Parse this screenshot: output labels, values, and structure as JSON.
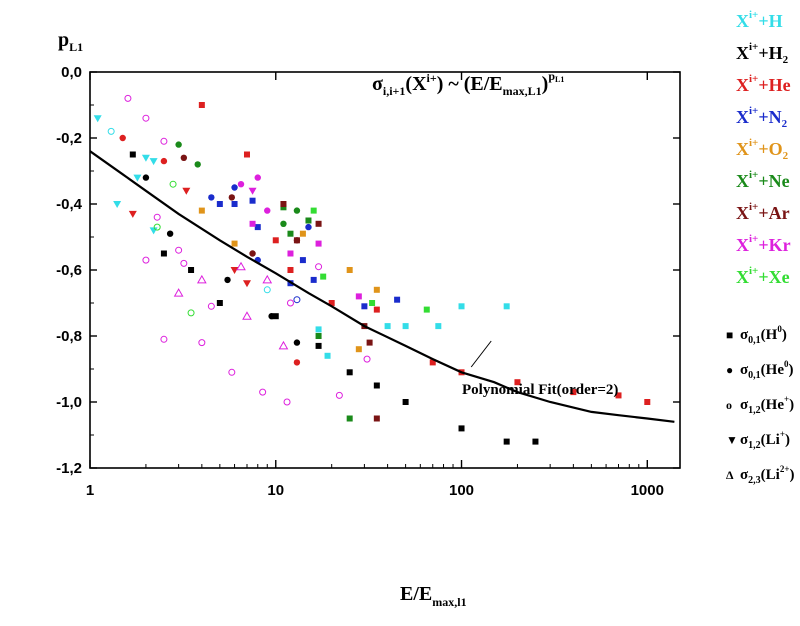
{
  "chart_data": {
    "type": "scatter",
    "x_scale": "log",
    "xlim": [
      1,
      1500
    ],
    "ylim": [
      -1.2,
      0.0
    ],
    "ylabel": {
      "main": "p",
      "sub": "L1"
    },
    "xlabel": {
      "main": "E/E",
      "sub": "max,l1"
    },
    "formula": {
      "sigma": "σ",
      "sub": "i,i+1",
      "arg": "(X",
      "argsup": "i+",
      "mid": ") ~ (E/E",
      "sub2": "max,L1",
      "close": ")",
      "exp": "p",
      "expsub": "L1"
    },
    "x_ticks": [
      {
        "v": 1,
        "label": "1"
      },
      {
        "v": 10,
        "label": "10"
      },
      {
        "v": 100,
        "label": "100"
      },
      {
        "v": 1000,
        "label": "1000"
      }
    ],
    "y_ticks": [
      {
        "v": 0.0,
        "label": "0,0"
      },
      {
        "v": -0.2,
        "label": "-0,2"
      },
      {
        "v": -0.4,
        "label": "-0,4"
      },
      {
        "v": -0.6,
        "label": "-0,6"
      },
      {
        "v": -0.8,
        "label": "-0,8"
      },
      {
        "v": -1.0,
        "label": "-1,0"
      },
      {
        "v": -1.2,
        "label": "-1,2"
      }
    ],
    "fit": {
      "label": "Polynomial Fit(order=2)",
      "points": [
        [
          1,
          -0.24
        ],
        [
          1.5,
          -0.31
        ],
        [
          2,
          -0.36
        ],
        [
          3,
          -0.43
        ],
        [
          5,
          -0.51
        ],
        [
          7,
          -0.56
        ],
        [
          10,
          -0.61
        ],
        [
          15,
          -0.67
        ],
        [
          20,
          -0.71
        ],
        [
          30,
          -0.77
        ],
        [
          50,
          -0.83
        ],
        [
          70,
          -0.87
        ],
        [
          100,
          -0.91
        ],
        [
          150,
          -0.94
        ],
        [
          200,
          -0.97
        ],
        [
          300,
          -1.0
        ],
        [
          500,
          -1.03
        ],
        [
          700,
          -1.04
        ],
        [
          1000,
          -1.05
        ],
        [
          1400,
          -1.06
        ]
      ],
      "annotation_at": [
        110,
        -0.9
      ]
    },
    "series_legend": [
      {
        "prefix": "X",
        "sup": "i+",
        "plus": "+H",
        "sub": "",
        "color": "#33dde8"
      },
      {
        "prefix": "X",
        "sup": "i+",
        "plus": "+H",
        "sub": "2",
        "color": "#000000"
      },
      {
        "prefix": "X",
        "sup": "i+",
        "plus": "+He",
        "sub": "",
        "color": "#dd2020"
      },
      {
        "prefix": "X",
        "sup": "i+",
        "plus": "+N",
        "sub": "2",
        "color": "#1a2ccc"
      },
      {
        "prefix": "X",
        "sup": "i+",
        "plus": "+O",
        "sub": "2",
        "color": "#e0941a"
      },
      {
        "prefix": "X",
        "sup": "i+",
        "plus": "+Ne",
        "sub": "",
        "color": "#1a8a1a"
      },
      {
        "prefix": "X",
        "sup": "i+",
        "plus": "+Ar",
        "sub": "",
        "color": "#7a1414"
      },
      {
        "prefix": "X",
        "sup": "i+",
        "plus": "+Kr",
        "sub": "",
        "color": "#dd20dd"
      },
      {
        "prefix": "X",
        "sup": "i+",
        "plus": "+Xe",
        "sub": "",
        "color": "#33dd33"
      }
    ],
    "marker_legend": [
      {
        "sym": "■",
        "shape": "square",
        "label": "σ",
        "sub": "0,1",
        "arg": "(H",
        "argsup": "0",
        "close": ")"
      },
      {
        "sym": "●",
        "shape": "circle",
        "label": "σ",
        "sub": "0,1",
        "arg": "(He",
        "argsup": "0",
        "close": ")"
      },
      {
        "sym": "o",
        "shape": "open-circle",
        "label": "σ",
        "sub": "1,2",
        "arg": "(He",
        "argsup": "+",
        "close": ")"
      },
      {
        "sym": "▼",
        "shape": "down-triangle",
        "label": "σ",
        "sub": "1,2",
        "arg": "(Li",
        "argsup": "+",
        "close": ")"
      },
      {
        "sym": "Δ",
        "shape": "open-triangle",
        "label": "σ",
        "sub": "2,3",
        "arg": "(Li",
        "argsup": "2+",
        "close": ")"
      }
    ],
    "points": [
      {
        "x": 1.1,
        "y": -0.14,
        "c": 0,
        "m": "d"
      },
      {
        "x": 1.4,
        "y": -0.4,
        "c": 0,
        "m": "d"
      },
      {
        "x": 1.8,
        "y": -0.32,
        "c": 0,
        "m": "d"
      },
      {
        "x": 2.0,
        "y": -0.26,
        "c": 0,
        "m": "d"
      },
      {
        "x": 2.2,
        "y": -0.48,
        "c": 0,
        "m": "d"
      },
      {
        "x": 17,
        "y": -0.78,
        "c": 0,
        "m": "s"
      },
      {
        "x": 19,
        "y": -0.86,
        "c": 0,
        "m": "s"
      },
      {
        "x": 40,
        "y": -0.77,
        "c": 0,
        "m": "s"
      },
      {
        "x": 50,
        "y": -0.77,
        "c": 0,
        "m": "s"
      },
      {
        "x": 75,
        "y": -0.77,
        "c": 0,
        "m": "s"
      },
      {
        "x": 100,
        "y": -0.71,
        "c": 0,
        "m": "s"
      },
      {
        "x": 175,
        "y": -0.71,
        "c": 0,
        "m": "s"
      },
      {
        "x": 1.7,
        "y": -0.25,
        "c": 1,
        "m": "s"
      },
      {
        "x": 2.5,
        "y": -0.55,
        "c": 1,
        "m": "s"
      },
      {
        "x": 3.5,
        "y": -0.6,
        "c": 1,
        "m": "s"
      },
      {
        "x": 5,
        "y": -0.7,
        "c": 1,
        "m": "s"
      },
      {
        "x": 10,
        "y": -0.74,
        "c": 1,
        "m": "s"
      },
      {
        "x": 17,
        "y": -0.83,
        "c": 1,
        "m": "s"
      },
      {
        "x": 25,
        "y": -0.91,
        "c": 1,
        "m": "s"
      },
      {
        "x": 35,
        "y": -0.95,
        "c": 1,
        "m": "s"
      },
      {
        "x": 50,
        "y": -1.0,
        "c": 1,
        "m": "s"
      },
      {
        "x": 100,
        "y": -1.08,
        "c": 1,
        "m": "s"
      },
      {
        "x": 175,
        "y": -1.12,
        "c": 1,
        "m": "s"
      },
      {
        "x": 250,
        "y": -1.12,
        "c": 1,
        "m": "s"
      },
      {
        "x": 2.0,
        "y": -0.32,
        "c": 1,
        "m": "c"
      },
      {
        "x": 2.7,
        "y": -0.49,
        "c": 1,
        "m": "c"
      },
      {
        "x": 5.5,
        "y": -0.63,
        "c": 1,
        "m": "c"
      },
      {
        "x": 9.5,
        "y": -0.74,
        "c": 1,
        "m": "c"
      },
      {
        "x": 13,
        "y": -0.82,
        "c": 1,
        "m": "c"
      },
      {
        "x": 4,
        "y": -0.1,
        "c": 2,
        "m": "s"
      },
      {
        "x": 7,
        "y": -0.25,
        "c": 2,
        "m": "s"
      },
      {
        "x": 10,
        "y": -0.51,
        "c": 2,
        "m": "s"
      },
      {
        "x": 12,
        "y": -0.6,
        "c": 2,
        "m": "s"
      },
      {
        "x": 20,
        "y": -0.7,
        "c": 2,
        "m": "s"
      },
      {
        "x": 35,
        "y": -0.72,
        "c": 2,
        "m": "s"
      },
      {
        "x": 70,
        "y": -0.88,
        "c": 2,
        "m": "s"
      },
      {
        "x": 100,
        "y": -0.91,
        "c": 2,
        "m": "s"
      },
      {
        "x": 200,
        "y": -0.94,
        "c": 2,
        "m": "s"
      },
      {
        "x": 400,
        "y": -0.97,
        "c": 2,
        "m": "s"
      },
      {
        "x": 700,
        "y": -0.98,
        "c": 2,
        "m": "s"
      },
      {
        "x": 1000,
        "y": -1.0,
        "c": 2,
        "m": "s"
      },
      {
        "x": 1.5,
        "y": -0.2,
        "c": 2,
        "m": "c"
      },
      {
        "x": 2.5,
        "y": -0.27,
        "c": 2,
        "m": "c"
      },
      {
        "x": 13,
        "y": -0.88,
        "c": 2,
        "m": "c"
      },
      {
        "x": 1.7,
        "y": -0.43,
        "c": 2,
        "m": "t"
      },
      {
        "x": 3.3,
        "y": -0.36,
        "c": 2,
        "m": "t"
      },
      {
        "x": 6,
        "y": -0.6,
        "c": 2,
        "m": "t"
      },
      {
        "x": 7,
        "y": -0.64,
        "c": 2,
        "m": "t"
      },
      {
        "x": 5,
        "y": -0.4,
        "c": 3,
        "m": "s"
      },
      {
        "x": 6,
        "y": -0.4,
        "c": 3,
        "m": "s"
      },
      {
        "x": 7.5,
        "y": -0.39,
        "c": 3,
        "m": "s"
      },
      {
        "x": 8,
        "y": -0.47,
        "c": 3,
        "m": "s"
      },
      {
        "x": 12,
        "y": -0.64,
        "c": 3,
        "m": "s"
      },
      {
        "x": 14,
        "y": -0.57,
        "c": 3,
        "m": "s"
      },
      {
        "x": 16,
        "y": -0.63,
        "c": 3,
        "m": "s"
      },
      {
        "x": 30,
        "y": -0.71,
        "c": 3,
        "m": "s"
      },
      {
        "x": 45,
        "y": -0.69,
        "c": 3,
        "m": "s"
      },
      {
        "x": 4.5,
        "y": -0.38,
        "c": 3,
        "m": "c"
      },
      {
        "x": 6,
        "y": -0.35,
        "c": 3,
        "m": "c"
      },
      {
        "x": 8,
        "y": -0.57,
        "c": 3,
        "m": "c"
      },
      {
        "x": 15,
        "y": -0.47,
        "c": 3,
        "m": "c"
      },
      {
        "x": 4,
        "y": -0.42,
        "c": 4,
        "m": "s"
      },
      {
        "x": 6,
        "y": -0.52,
        "c": 4,
        "m": "s"
      },
      {
        "x": 14,
        "y": -0.49,
        "c": 4,
        "m": "s"
      },
      {
        "x": 25,
        "y": -0.6,
        "c": 4,
        "m": "s"
      },
      {
        "x": 28,
        "y": -0.84,
        "c": 4,
        "m": "s"
      },
      {
        "x": 35,
        "y": -0.66,
        "c": 4,
        "m": "s"
      },
      {
        "x": 3,
        "y": -0.22,
        "c": 5,
        "m": "c"
      },
      {
        "x": 3.8,
        "y": -0.28,
        "c": 5,
        "m": "c"
      },
      {
        "x": 11,
        "y": -0.46,
        "c": 5,
        "m": "c"
      },
      {
        "x": 13,
        "y": -0.42,
        "c": 5,
        "m": "c"
      },
      {
        "x": 11,
        "y": -0.41,
        "c": 5,
        "m": "s"
      },
      {
        "x": 15,
        "y": -0.45,
        "c": 5,
        "m": "s"
      },
      {
        "x": 17,
        "y": -0.8,
        "c": 5,
        "m": "s"
      },
      {
        "x": 25,
        "y": -1.05,
        "c": 5,
        "m": "s"
      },
      {
        "x": 12,
        "y": -0.49,
        "c": 5,
        "m": "s"
      },
      {
        "x": 3.2,
        "y": -0.26,
        "c": 6,
        "m": "c"
      },
      {
        "x": 5.8,
        "y": -0.38,
        "c": 6,
        "m": "c"
      },
      {
        "x": 13,
        "y": -0.51,
        "c": 6,
        "m": "c"
      },
      {
        "x": 7.5,
        "y": -0.55,
        "c": 6,
        "m": "c"
      },
      {
        "x": 11,
        "y": -0.4,
        "c": 6,
        "m": "s"
      },
      {
        "x": 13,
        "y": -0.51,
        "c": 6,
        "m": "s"
      },
      {
        "x": 17,
        "y": -0.46,
        "c": 6,
        "m": "s"
      },
      {
        "x": 30,
        "y": -0.77,
        "c": 6,
        "m": "s"
      },
      {
        "x": 35,
        "y": -1.05,
        "c": 6,
        "m": "s"
      },
      {
        "x": 32,
        "y": -0.82,
        "c": 6,
        "m": "s"
      },
      {
        "x": 6.5,
        "y": -0.34,
        "c": 7,
        "m": "c"
      },
      {
        "x": 8,
        "y": -0.32,
        "c": 7,
        "m": "c"
      },
      {
        "x": 9,
        "y": -0.42,
        "c": 7,
        "m": "c"
      },
      {
        "x": 7.5,
        "y": -0.46,
        "c": 7,
        "m": "s"
      },
      {
        "x": 12,
        "y": -0.55,
        "c": 7,
        "m": "s"
      },
      {
        "x": 17,
        "y": -0.52,
        "c": 7,
        "m": "s"
      },
      {
        "x": 28,
        "y": -0.68,
        "c": 7,
        "m": "s"
      },
      {
        "x": 1.6,
        "y": -0.08,
        "c": 7,
        "m": "o"
      },
      {
        "x": 2.0,
        "y": -0.14,
        "c": 7,
        "m": "o"
      },
      {
        "x": 2.5,
        "y": -0.21,
        "c": 7,
        "m": "o"
      },
      {
        "x": 2.3,
        "y": -0.44,
        "c": 7,
        "m": "o"
      },
      {
        "x": 3,
        "y": -0.54,
        "c": 7,
        "m": "o"
      },
      {
        "x": 3.2,
        "y": -0.58,
        "c": 7,
        "m": "o"
      },
      {
        "x": 2.0,
        "y": -0.57,
        "c": 7,
        "m": "o"
      },
      {
        "x": 2.5,
        "y": -0.81,
        "c": 7,
        "m": "o"
      },
      {
        "x": 4,
        "y": -0.82,
        "c": 7,
        "m": "o"
      },
      {
        "x": 5.8,
        "y": -0.91,
        "c": 7,
        "m": "o"
      },
      {
        "x": 8.5,
        "y": -0.97,
        "c": 7,
        "m": "o"
      },
      {
        "x": 11.5,
        "y": -1.0,
        "c": 7,
        "m": "o"
      },
      {
        "x": 22,
        "y": -0.98,
        "c": 7,
        "m": "o"
      },
      {
        "x": 31,
        "y": -0.87,
        "c": 7,
        "m": "o"
      },
      {
        "x": 12,
        "y": -0.7,
        "c": 7,
        "m": "o"
      },
      {
        "x": 17,
        "y": -0.59,
        "c": 7,
        "m": "o"
      },
      {
        "x": 4.5,
        "y": -0.71,
        "c": 7,
        "m": "o"
      },
      {
        "x": 7.5,
        "y": -0.36,
        "c": 7,
        "m": "t"
      },
      {
        "x": 4,
        "y": -0.63,
        "c": 7,
        "m": "a"
      },
      {
        "x": 6.5,
        "y": -0.59,
        "c": 7,
        "m": "a"
      },
      {
        "x": 9,
        "y": -0.63,
        "c": 7,
        "m": "a"
      },
      {
        "x": 3,
        "y": -0.67,
        "c": 7,
        "m": "a"
      },
      {
        "x": 11,
        "y": -0.83,
        "c": 7,
        "m": "a"
      },
      {
        "x": 7,
        "y": -0.74,
        "c": 7,
        "m": "a"
      },
      {
        "x": 16,
        "y": -0.42,
        "c": 8,
        "m": "s"
      },
      {
        "x": 33,
        "y": -0.7,
        "c": 8,
        "m": "s"
      },
      {
        "x": 65,
        "y": -0.72,
        "c": 8,
        "m": "s"
      },
      {
        "x": 18,
        "y": -0.62,
        "c": 8,
        "m": "s"
      },
      {
        "x": 3.5,
        "y": -0.73,
        "c": 8,
        "m": "o"
      },
      {
        "x": 2.8,
        "y": -0.34,
        "c": 8,
        "m": "o"
      },
      {
        "x": 2.3,
        "y": -0.47,
        "c": 8,
        "m": "o"
      },
      {
        "x": 1.3,
        "y": -0.18,
        "c": 0,
        "m": "o"
      },
      {
        "x": 9,
        "y": -0.66,
        "c": 0,
        "m": "o"
      },
      {
        "x": 13,
        "y": -0.69,
        "c": 3,
        "m": "o"
      },
      {
        "x": 2.2,
        "y": -0.27,
        "c": 0,
        "m": "d"
      }
    ]
  }
}
